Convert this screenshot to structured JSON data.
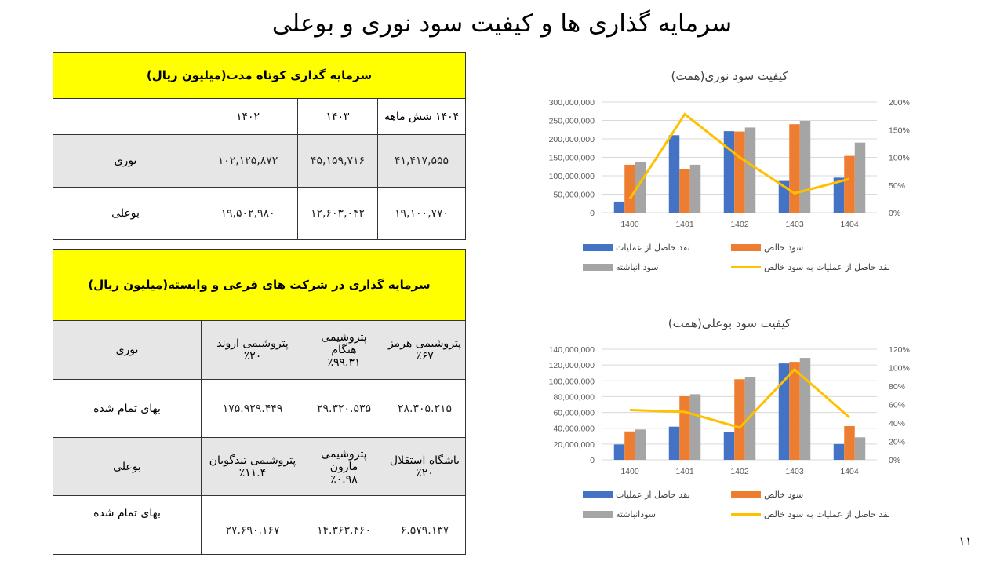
{
  "title": "سرمایه گذاری ها و کیفیت سود نوری و بوعلی",
  "table_short_term": {
    "header": "سرمایه گذاری کوتاه مدت(میلیون ریال)",
    "columns": [
      "۱۴۰۴ شش ماهه",
      "۱۴۰۳",
      "۱۴۰۲"
    ],
    "rows": [
      {
        "label": "نوری",
        "values": [
          "۴۱,۴۱۷,۵۵۵",
          "۴۵,۱۵۹,۷۱۶",
          "۱۰۲,۱۲۵,۸۷۲"
        ]
      },
      {
        "label": "بوعلی",
        "values": [
          "۱۹,۱۰۰,۷۷۰",
          "۱۲,۶۰۳,۰۴۲",
          "۱۹,۵۰۲,۹۸۰"
        ]
      }
    ]
  },
  "table_subsidiaries": {
    "header": "سرمایه گذاری در شرکت های فرعی و وابسته(میلیون ریال)",
    "groups": [
      {
        "label": "نوری",
        "cost_label": "بهای تمام شده",
        "companies": [
          {
            "name": "پتروشیمی هرمز",
            "share": "٪۶۷",
            "cost": "۲۸.۳۰۵.۲۱۵"
          },
          {
            "name": "پتروشیمی هنگام",
            "share": "٪۹۹.۳۱",
            "cost": "۲۹.۳۲۰.۵۳۵"
          },
          {
            "name": "پتروشیمی اروند",
            "share": "٪۲۰",
            "cost": "۱۷۵.۹۲۹.۴۴۹"
          }
        ]
      },
      {
        "label": "بوعلی",
        "cost_label": "بهای تمام شده",
        "companies": [
          {
            "name": "باشگاه استقلال",
            "share": "٪۲۰",
            "cost": "۶.۵۷۹.۱۳۷"
          },
          {
            "name": "پتروشیمی مارون",
            "share": "٪۰.۹۸",
            "cost": "۱۴.۳۶۳.۴۶۰"
          },
          {
            "name": "پتروشیمی تندگویان",
            "share": "٪۱۱.۴",
            "cost": "۲۷.۶۹۰.۱۶۷"
          }
        ]
      }
    ]
  },
  "page_number": "۱۱",
  "chart_data": [
    {
      "type": "bar",
      "title": "کیفیت سود نوری(همت)",
      "categories": [
        "1400",
        "1401",
        "1402",
        "1403",
        "1404"
      ],
      "ylim": [
        0,
        300000000
      ],
      "yticks": [
        "0",
        "50,000,000",
        "100,000,000",
        "150,000,000",
        "200,000,000",
        "250,000,000",
        "300,000,000"
      ],
      "y2lim": [
        0,
        200
      ],
      "y2ticks": [
        "0%",
        "50%",
        "100%",
        "150%",
        "200%"
      ],
      "series": [
        {
          "name": "نقد حاصل از عملیات",
          "kind": "bar",
          "color": "#4472c4",
          "values": [
            30000000,
            210000000,
            221000000,
            86000000,
            95000000
          ]
        },
        {
          "name": "سود خالص",
          "kind": "bar",
          "color": "#ed7d31",
          "values": [
            130000000,
            117000000,
            220000000,
            240000000,
            154000000
          ]
        },
        {
          "name": "سود انباشته",
          "kind": "bar",
          "color": "#a5a5a5",
          "values": [
            138000000,
            130000000,
            231000000,
            249000000,
            190000000
          ]
        },
        {
          "name": "نقد حاصل از عملیات به سود خالص",
          "kind": "line",
          "axis": "secondary",
          "color": "#ffc000",
          "values": [
            25,
            178,
            100,
            35,
            61
          ]
        }
      ],
      "legend": "bottom",
      "grid": true
    },
    {
      "type": "bar",
      "title": "کیفیت سود بوعلی(همت)",
      "categories": [
        "1400",
        "1401",
        "1402",
        "1403",
        "1404"
      ],
      "ylim": [
        0,
        140000000
      ],
      "yticks": [
        "0",
        "20,000,000",
        "40,000,000",
        "60,000,000",
        "80,000,000",
        "100,000,000",
        "120,000,000",
        "140,000,000"
      ],
      "y2lim": [
        0,
        120
      ],
      "y2ticks": [
        "0%",
        "20%",
        "40%",
        "60%",
        "80%",
        "100%",
        "120%"
      ],
      "series": [
        {
          "name": "نقد حاصل از عملیات",
          "kind": "bar",
          "color": "#4472c4",
          "values": [
            19500000,
            42000000,
            35000000,
            122000000,
            20000000
          ]
        },
        {
          "name": "سود خالص",
          "kind": "bar",
          "color": "#ed7d31",
          "values": [
            36000000,
            80500000,
            102000000,
            124000000,
            42700000
          ]
        },
        {
          "name": "سودانباشته",
          "kind": "bar",
          "color": "#a5a5a5",
          "values": [
            38400000,
            83000000,
            105000000,
            129000000,
            28500000
          ]
        },
        {
          "name": "نقد حاصل از عملیات به سود خالص",
          "kind": "line",
          "axis": "secondary",
          "color": "#ffc000",
          "values": [
            54,
            52,
            35,
            98,
            46
          ]
        }
      ],
      "legend": "bottom",
      "grid": true
    }
  ]
}
